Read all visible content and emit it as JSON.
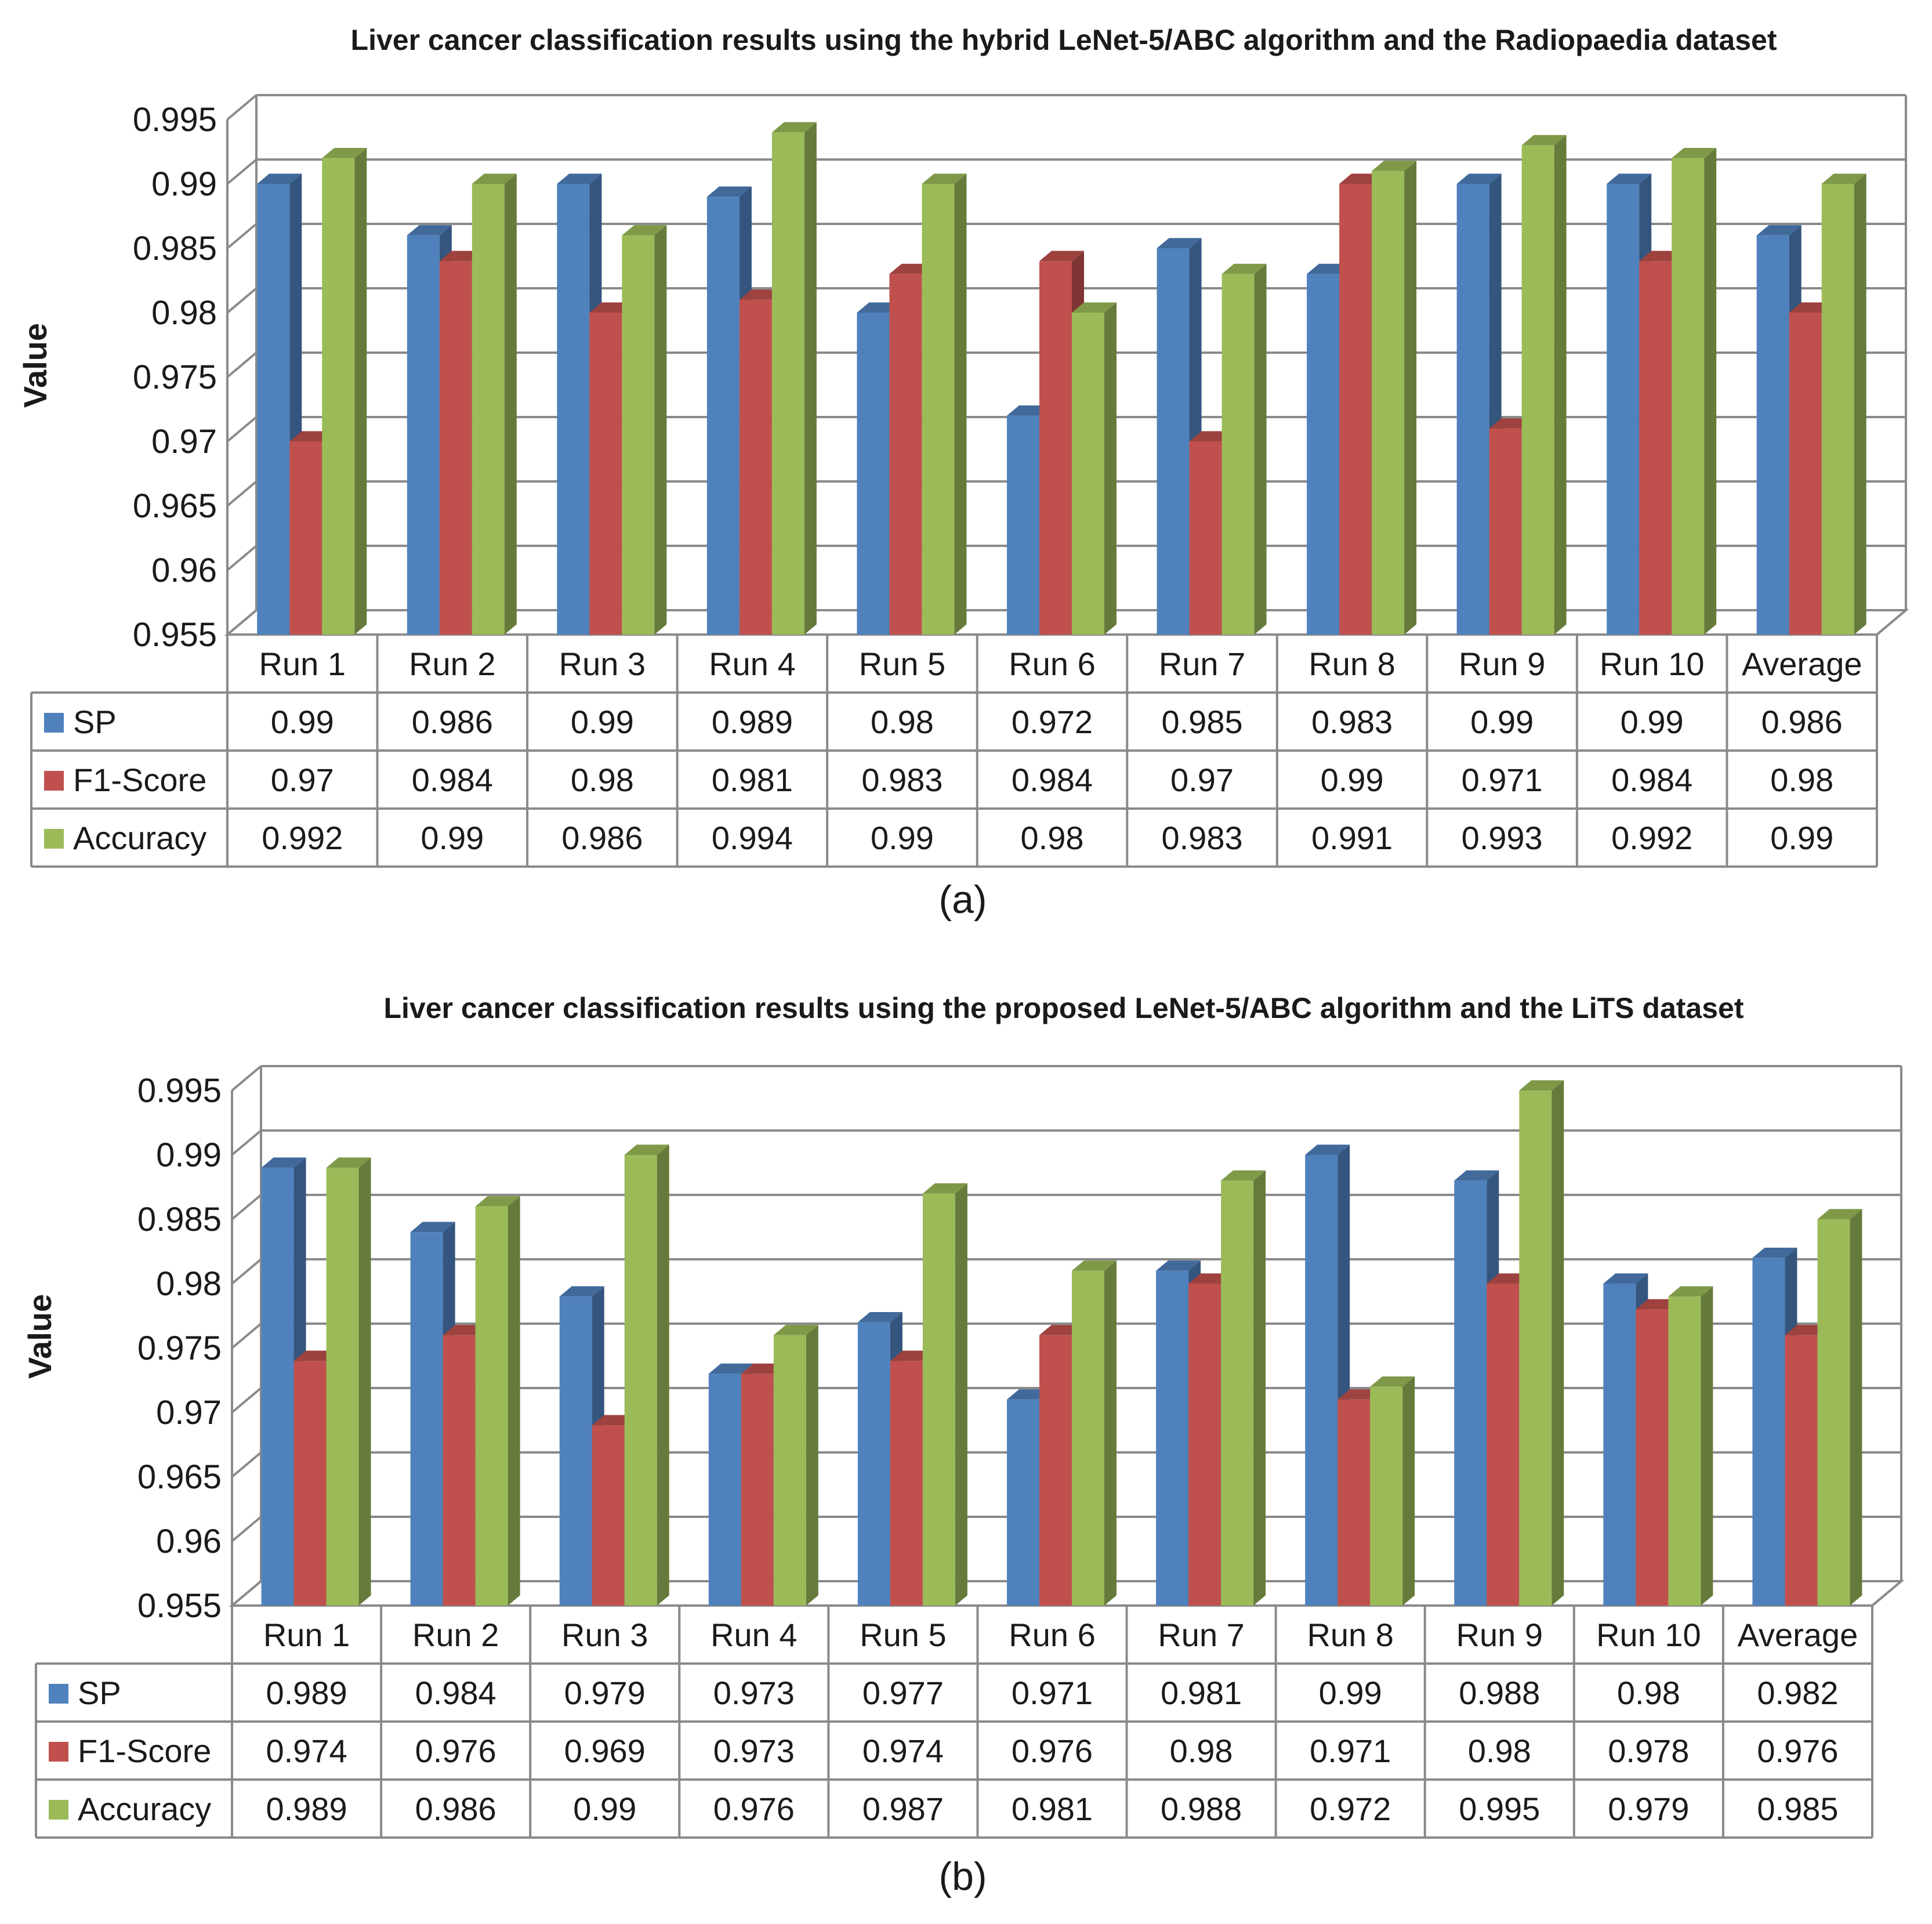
{
  "colors": {
    "sp": "#4f81bd",
    "f1": "#c0504d",
    "accuracy": "#9bbb59"
  },
  "chart_data": [
    {
      "type": "bar",
      "panel_label": "(a)",
      "title": "Liver cancer classification results using the hybrid LeNet-5/ABC  algorithm and the Radiopaedia dataset",
      "ylabel": "Value",
      "ylim": [
        0.955,
        0.995
      ],
      "yticks": [
        "0.955",
        "0.96",
        "0.965",
        "0.97",
        "0.975",
        "0.98",
        "0.985",
        "0.99",
        "0.995"
      ],
      "categories": [
        "Run 1",
        "Run 2",
        "Run 3",
        "Run 4",
        "Run 5",
        "Run 6",
        "Run 7",
        "Run 8",
        "Run 9",
        "Run 10",
        "Average"
      ],
      "series": [
        {
          "name": "SP",
          "color_key": "sp",
          "values": [
            0.99,
            0.986,
            0.99,
            0.989,
            0.98,
            0.972,
            0.985,
            0.983,
            0.99,
            0.99,
            0.986
          ],
          "labels": [
            "0.99",
            "0.986",
            "0.99",
            "0.989",
            "0.98",
            "0.972",
            "0.985",
            "0.983",
            "0.99",
            "0.99",
            "0.986"
          ]
        },
        {
          "name": "F1-Score",
          "color_key": "f1",
          "values": [
            0.97,
            0.984,
            0.98,
            0.981,
            0.983,
            0.984,
            0.97,
            0.99,
            0.971,
            0.984,
            0.98
          ],
          "labels": [
            "0.97",
            "0.984",
            "0.98",
            "0.981",
            "0.983",
            "0.984",
            "0.97",
            "0.99",
            "0.971",
            "0.984",
            "0.98"
          ]
        },
        {
          "name": "Accuracy",
          "color_key": "accuracy",
          "values": [
            0.992,
            0.99,
            0.986,
            0.994,
            0.99,
            0.98,
            0.983,
            0.991,
            0.993,
            0.992,
            0.99
          ],
          "labels": [
            "0.992",
            "0.99",
            "0.986",
            "0.994",
            "0.99",
            "0.98",
            "0.983",
            "0.991",
            "0.993",
            "0.992",
            "0.99"
          ]
        }
      ]
    },
    {
      "type": "bar",
      "panel_label": "(b)",
      "title": "Liver cancer classification results using the proposed LeNet-5/ABC  algorithm and the LiTS dataset",
      "ylabel": "Value",
      "ylim": [
        0.955,
        0.995
      ],
      "yticks": [
        "0.955",
        "0.96",
        "0.965",
        "0.97",
        "0.975",
        "0.98",
        "0.985",
        "0.99",
        "0.995"
      ],
      "categories": [
        "Run 1",
        "Run 2",
        "Run 3",
        "Run 4",
        "Run 5",
        "Run 6",
        "Run 7",
        "Run 8",
        "Run 9",
        "Run 10",
        "Average"
      ],
      "series": [
        {
          "name": "SP",
          "color_key": "sp",
          "values": [
            0.989,
            0.984,
            0.979,
            0.973,
            0.977,
            0.971,
            0.981,
            0.99,
            0.988,
            0.98,
            0.982
          ],
          "labels": [
            "0.989",
            "0.984",
            "0.979",
            "0.973",
            "0.977",
            "0.971",
            "0.981",
            "0.99",
            "0.988",
            "0.98",
            "0.982"
          ]
        },
        {
          "name": "F1-Score",
          "color_key": "f1",
          "values": [
            0.974,
            0.976,
            0.969,
            0.973,
            0.974,
            0.976,
            0.98,
            0.971,
            0.98,
            0.978,
            0.976
          ],
          "labels": [
            "0.974",
            "0.976",
            "0.969",
            "0.973",
            "0.974",
            "0.976",
            "0.98",
            "0.971",
            "0.98",
            "0.978",
            "0.976"
          ]
        },
        {
          "name": "Accuracy",
          "color_key": "accuracy",
          "values": [
            0.989,
            0.986,
            0.99,
            0.976,
            0.987,
            0.981,
            0.988,
            0.972,
            0.995,
            0.979,
            0.985
          ],
          "labels": [
            "0.989",
            "0.986",
            "0.99",
            "0.976",
            "0.987",
            "0.981",
            "0.988",
            "0.972",
            "0.995",
            "0.979",
            "0.985"
          ]
        }
      ]
    }
  ]
}
